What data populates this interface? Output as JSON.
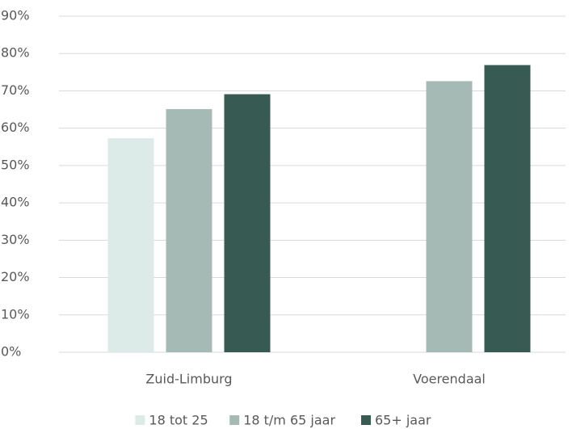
{
  "chart_data": {
    "type": "bar",
    "categories": [
      "Zuid-Limburg",
      "Voerendaal"
    ],
    "series": [
      {
        "name": "18 tot 25",
        "color": "#ddebe8",
        "values": [
          57.3,
          null
        ]
      },
      {
        "name": "18 t/m 65 jaar",
        "color": "#a5b9b5",
        "values": [
          65.1,
          72.6
        ]
      },
      {
        "name": "65+ jaar",
        "color": "#375a53",
        "values": [
          69.1,
          76.9
        ]
      }
    ],
    "ylim": [
      0,
      90
    ],
    "yticks": [
      {
        "value": 0,
        "label": "0%"
      },
      {
        "value": 10,
        "label": "10%"
      },
      {
        "value": 20,
        "label": "20%"
      },
      {
        "value": 30,
        "label": "30%"
      },
      {
        "value": 40,
        "label": "40%"
      },
      {
        "value": 50,
        "label": "50%"
      },
      {
        "value": 60,
        "label": "60%"
      },
      {
        "value": 70,
        "label": "70%"
      },
      {
        "value": 80,
        "label": "80%"
      },
      {
        "value": 90,
        "label": "90%"
      }
    ],
    "grid": true,
    "legend": "bottom"
  }
}
